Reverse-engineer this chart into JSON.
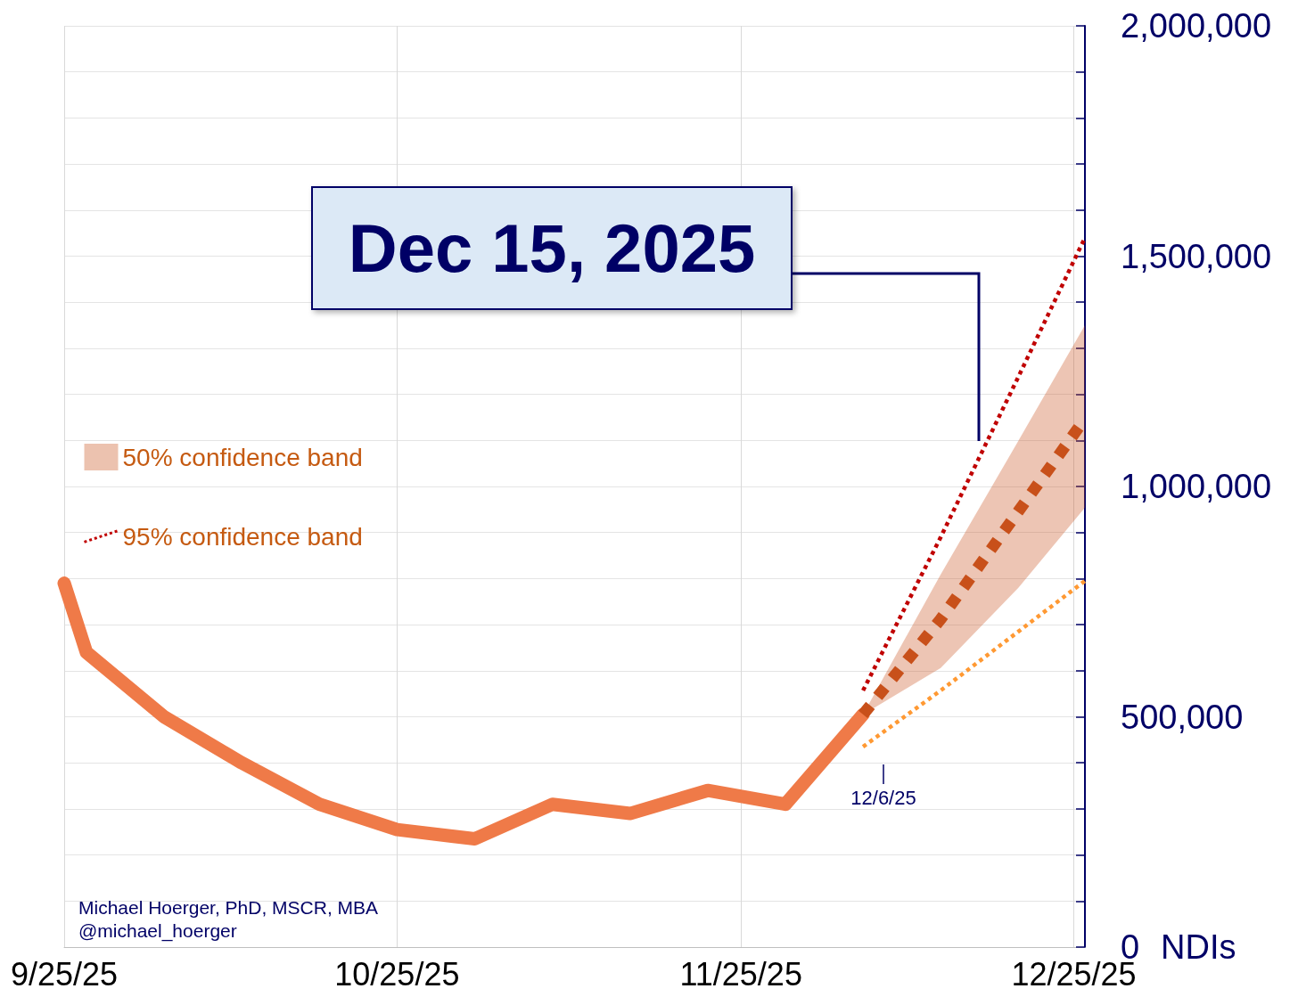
{
  "chart_data": {
    "type": "line",
    "ylabel": "NDIs",
    "xlim": [
      "2025-09-25",
      "2025-12-26"
    ],
    "xticks": [
      {
        "value": "2025-09-25",
        "label": "9/25/25"
      },
      {
        "value": "2025-10-25",
        "label": "10/25/25"
      },
      {
        "value": "2025-11-25",
        "label": "11/25/25"
      },
      {
        "value": "2025-12-25",
        "label": "12/25/25"
      }
    ],
    "ylim": [
      0,
      2000000
    ],
    "yticks": [
      {
        "value": 0,
        "label": "0"
      },
      {
        "value": 100000,
        "label": null
      },
      {
        "value": 200000,
        "label": null
      },
      {
        "value": 300000,
        "label": null
      },
      {
        "value": 400000,
        "label": null
      },
      {
        "value": 500000,
        "label": "500,000"
      },
      {
        "value": 600000,
        "label": null
      },
      {
        "value": 700000,
        "label": null
      },
      {
        "value": 800000,
        "label": null
      },
      {
        "value": 900000,
        "label": null
      },
      {
        "value": 1000000,
        "label": "1,000,000"
      },
      {
        "value": 1100000,
        "label": null
      },
      {
        "value": 1200000,
        "label": null
      },
      {
        "value": 1300000,
        "label": null
      },
      {
        "value": 1400000,
        "label": null
      },
      {
        "value": 1500000,
        "label": "1,500,000"
      },
      {
        "value": 1600000,
        "label": null
      },
      {
        "value": 1700000,
        "label": null
      },
      {
        "value": 1800000,
        "label": null
      },
      {
        "value": 1900000,
        "label": null
      },
      {
        "value": 2000000,
        "label": "2,000,000"
      }
    ],
    "grid": true,
    "legend": "left",
    "marker": "none",
    "series": [
      {
        "color": "#ef7a48",
        "line_style": "solid",
        "x": [
          "2025-09-25",
          "2025-09-27",
          "2025-10-04",
          "2025-10-11",
          "2025-10-18",
          "2025-10-25",
          "2025-11-01",
          "2025-11-08",
          "2025-11-15",
          "2025-11-22",
          "2025-11-29",
          "2025-12-06"
        ],
        "values": [
          790000,
          640000,
          500000,
          400000,
          310000,
          255000,
          235000,
          310000,
          290000,
          340000,
          310000,
          505000
        ]
      },
      {
        "name": "50% confidence band",
        "color": "#c8501a",
        "line_style": "dotted",
        "x": [
          "2025-12-06",
          "2025-12-13",
          "2025-12-20",
          "2025-12-26"
        ],
        "values": [
          505000,
          712000,
          946000,
          1147000
        ],
        "lower": [
          505000,
          606000,
          780000,
          954000
        ],
        "upper": [
          505000,
          809000,
          1099000,
          1350000
        ]
      },
      {
        "name": "95% confidence band",
        "color": "#c00000",
        "line_style": "dotted",
        "x": [
          "2025-12-06",
          "2025-12-13",
          "2025-12-20",
          "2025-12-26"
        ],
        "values": [
          557000,
          890000,
          1238000,
          1540000
        ]
      },
      {
        "color": "#ff9933",
        "line_style": "dotted",
        "x": [
          "2025-12-06",
          "2025-12-13",
          "2025-12-20",
          "2025-12-26"
        ],
        "values": [
          435000,
          557000,
          685000,
          795000
        ]
      }
    ],
    "annotations": [
      "Dec 15, 2025",
      "12/6/25",
      "Michael Hoerger, PhD, MSCR, MBA",
      "@michael_hoerger"
    ]
  }
}
